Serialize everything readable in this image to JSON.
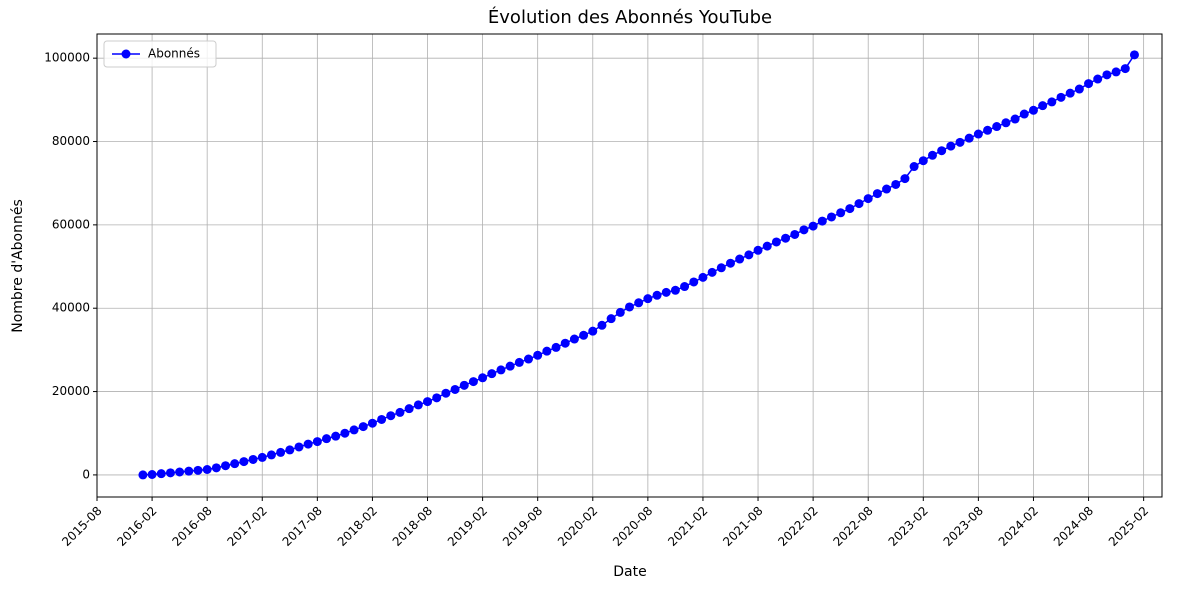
{
  "chart_data": {
    "type": "line",
    "title": "Évolution des Abonnés YouTube",
    "x_label": "Date",
    "y_label": "Nombre d'Abonnés",
    "x": [
      "2016-01",
      "2016-02",
      "2016-03",
      "2016-04",
      "2016-05",
      "2016-06",
      "2016-07",
      "2016-08",
      "2016-09",
      "2016-10",
      "2016-11",
      "2016-12",
      "2017-01",
      "2017-02",
      "2017-03",
      "2017-04",
      "2017-05",
      "2017-06",
      "2017-07",
      "2017-08",
      "2017-09",
      "2017-10",
      "2017-11",
      "2017-12",
      "2018-01",
      "2018-02",
      "2018-03",
      "2018-04",
      "2018-05",
      "2018-06",
      "2018-07",
      "2018-08",
      "2018-09",
      "2018-10",
      "2018-11",
      "2018-12",
      "2019-01",
      "2019-02",
      "2019-03",
      "2019-04",
      "2019-05",
      "2019-06",
      "2019-07",
      "2019-08",
      "2019-09",
      "2019-10",
      "2019-11",
      "2019-12",
      "2020-01",
      "2020-02",
      "2020-03",
      "2020-04",
      "2020-05",
      "2020-06",
      "2020-07",
      "2020-08",
      "2020-09",
      "2020-10",
      "2020-11",
      "2020-12",
      "2021-01",
      "2021-02",
      "2021-03",
      "2021-04",
      "2021-05",
      "2021-06",
      "2021-07",
      "2021-08",
      "2021-09",
      "2021-10",
      "2021-11",
      "2021-12",
      "2022-01",
      "2022-02",
      "2022-03",
      "2022-04",
      "2022-05",
      "2022-06",
      "2022-07",
      "2022-08",
      "2022-09",
      "2022-10",
      "2022-11",
      "2022-12",
      "2023-01",
      "2023-02",
      "2023-03",
      "2023-04",
      "2023-05",
      "2023-06",
      "2023-07",
      "2023-08",
      "2023-09",
      "2023-10",
      "2023-11",
      "2023-12",
      "2024-01",
      "2024-02",
      "2024-03",
      "2024-04",
      "2024-05",
      "2024-06",
      "2024-07",
      "2024-08",
      "2024-09",
      "2024-10",
      "2024-11",
      "2024-12",
      "2025-01"
    ],
    "series": [
      {
        "name": "Abonnés",
        "color": "#0000ff",
        "values": [
          0,
          100,
          300,
          500,
          700,
          900,
          1100,
          1300,
          1700,
          2200,
          2700,
          3200,
          3700,
          4200,
          4800,
          5400,
          6000,
          6700,
          7400,
          8000,
          8700,
          9300,
          10000,
          10800,
          11600,
          12400,
          13300,
          14200,
          15000,
          15900,
          16800,
          17600,
          18500,
          19600,
          20500,
          21500,
          22400,
          23300,
          24300,
          25200,
          26100,
          27000,
          27800,
          28700,
          29700,
          30600,
          31600,
          32600,
          33500,
          34500,
          35900,
          37500,
          39000,
          40300,
          41300,
          42300,
          43100,
          43800,
          44300,
          45200,
          46300,
          47400,
          48600,
          49700,
          50800,
          51800,
          52800,
          53900,
          54900,
          55900,
          56800,
          57700,
          58800,
          59700,
          60900,
          61900,
          62900,
          63900,
          65100,
          66300,
          67500,
          68600,
          69700,
          71100,
          74000,
          75400,
          76700,
          77800,
          78900,
          79800,
          80800,
          81800,
          82700,
          83600,
          84500,
          85400,
          86600,
          87500,
          88600,
          89500,
          90600,
          91600,
          92600,
          93900,
          95000,
          96000,
          96700,
          97500,
          100800
        ]
      }
    ],
    "xlim": [
      "2015-08",
      "2025-04"
    ],
    "xticks": [
      "2015-08",
      "2016-02",
      "2016-08",
      "2017-02",
      "2017-08",
      "2018-02",
      "2018-08",
      "2019-02",
      "2019-08",
      "2020-02",
      "2020-08",
      "2021-02",
      "2021-08",
      "2022-02",
      "2022-08",
      "2023-02",
      "2023-08",
      "2024-02",
      "2024-08",
      "2025-02"
    ],
    "ylim": [
      -5300,
      105800
    ],
    "yticks": [
      0,
      20000,
      40000,
      60000,
      80000,
      100000
    ],
    "grid": true,
    "legend": "upper left"
  }
}
